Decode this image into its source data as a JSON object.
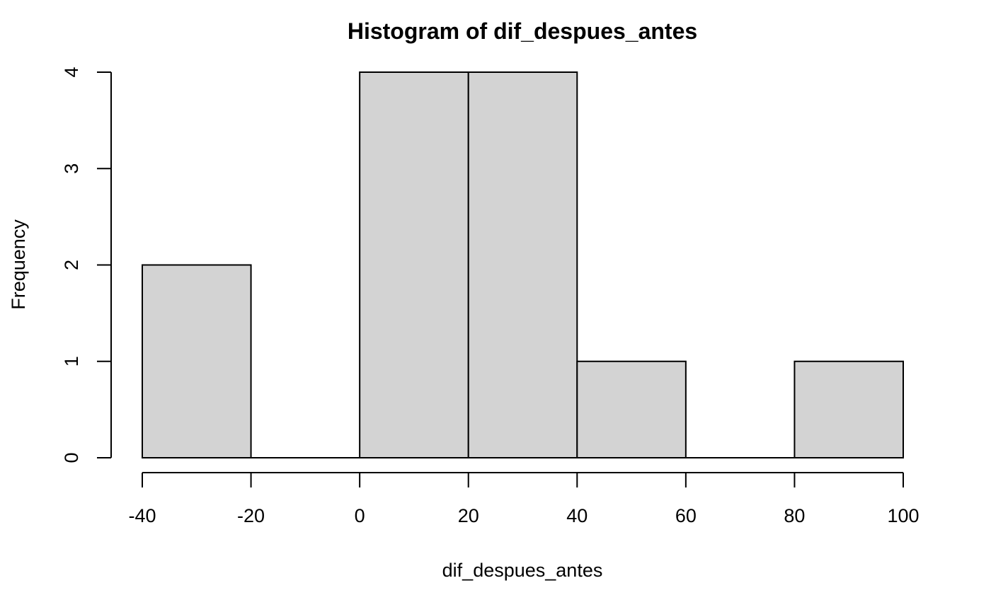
{
  "chart_data": {
    "type": "bar",
    "title": "Histogram of dif_despues_antes",
    "xlabel": "dif_despues_antes",
    "ylabel": "Frequency",
    "bins": [
      {
        "from": -40,
        "to": -20,
        "count": 2
      },
      {
        "from": -20,
        "to": 0,
        "count": 0
      },
      {
        "from": 0,
        "to": 20,
        "count": 4
      },
      {
        "from": 20,
        "to": 40,
        "count": 4
      },
      {
        "from": 40,
        "to": 60,
        "count": 1
      },
      {
        "from": 60,
        "to": 80,
        "count": 0
      },
      {
        "from": 80,
        "to": 100,
        "count": 1
      }
    ],
    "xlim": [
      -40,
      100
    ],
    "ylim": [
      0,
      4
    ],
    "x_ticks": [
      -40,
      -20,
      0,
      20,
      40,
      60,
      80,
      100
    ],
    "x_tick_labels": [
      "-40",
      "-20",
      "0",
      "20",
      "40",
      "60",
      "80",
      "100"
    ],
    "y_ticks": [
      0,
      1,
      2,
      3,
      4
    ],
    "y_tick_labels": [
      "0",
      "1",
      "2",
      "3",
      "4"
    ],
    "grid": false,
    "legend": "none",
    "colors": {
      "bar_fill": "#d3d3d3",
      "bar_stroke": "#000000",
      "axis": "#000000",
      "background": "#ffffff"
    }
  }
}
